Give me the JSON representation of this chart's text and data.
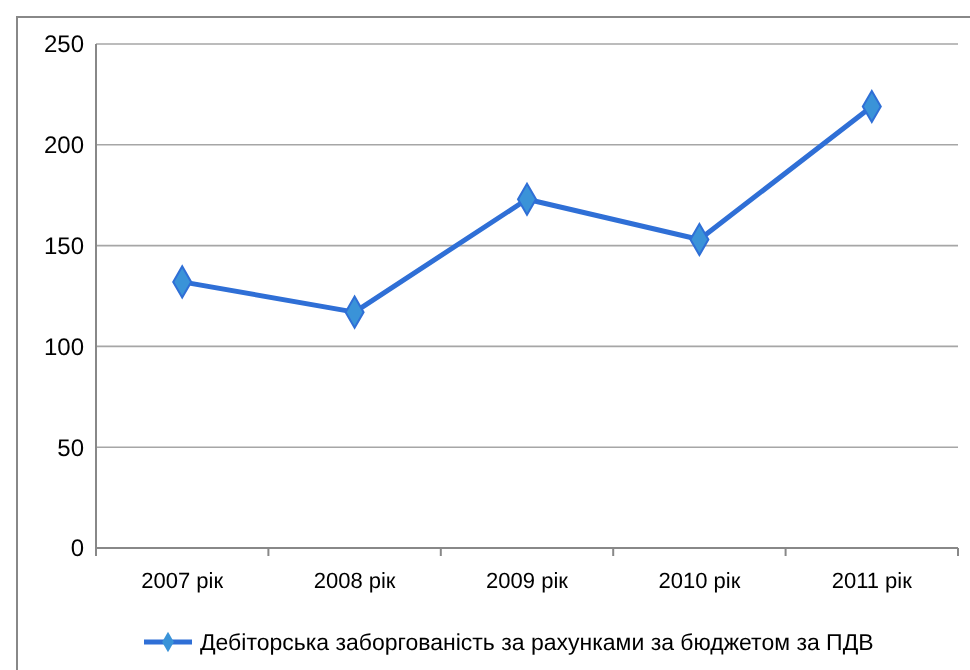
{
  "chart_data": {
    "type": "line",
    "categories": [
      "2007 рік",
      "2008 рік",
      "2009 рік",
      "2010 рік",
      "2011 рік"
    ],
    "series": [
      {
        "name": "Дебіторська заборгованість за рахунками за бюджетом за ПДВ",
        "color": "#2f6fd6",
        "values": [
          132,
          117,
          173,
          153,
          219
        ]
      }
    ],
    "ylim": [
      0,
      250
    ],
    "yticks": [
      0,
      50,
      100,
      150,
      200,
      250
    ],
    "grid": "y",
    "legend": "bottom",
    "marker": "diamond",
    "line_style": "solid"
  }
}
